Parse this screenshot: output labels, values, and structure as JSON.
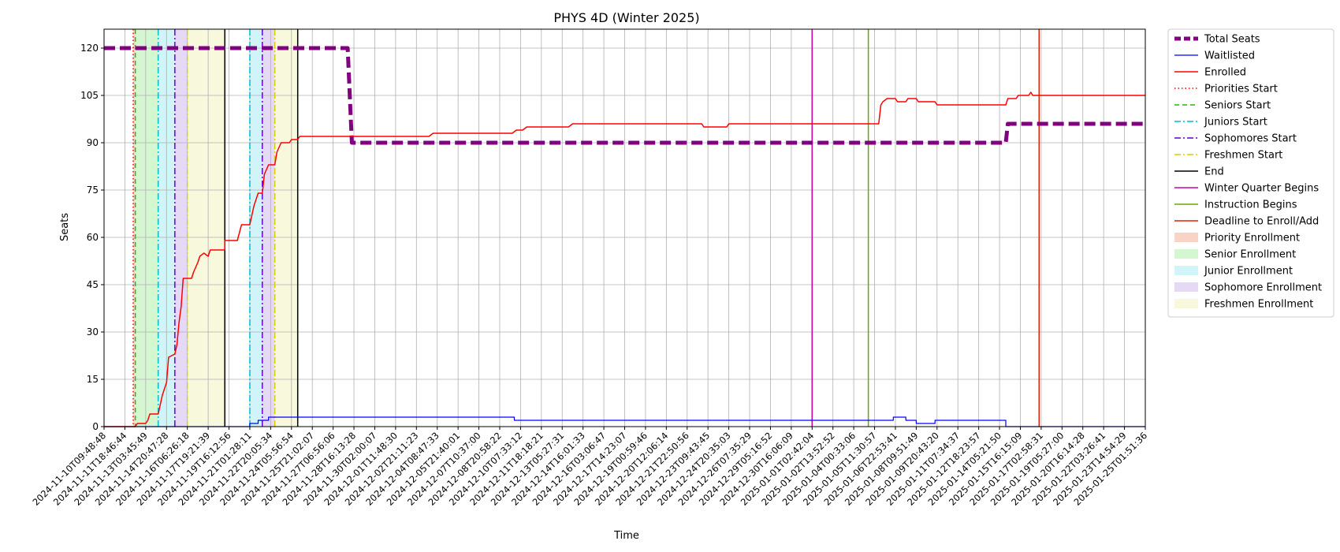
{
  "chart_data": {
    "type": "line",
    "title": "PHYS 4D (Winter 2025)",
    "xlabel": "Time",
    "ylabel": "Seats",
    "ylim": [
      0,
      126
    ],
    "yticks": [
      0,
      15,
      30,
      45,
      60,
      75,
      90,
      105,
      120
    ],
    "grid": true,
    "legend_position": "outside-right",
    "x_tick_labels": [
      "2024-11-10T09:48:48",
      "2024-11-11T18:46:44",
      "2024-11-13T03:45:49",
      "2024-11-14T20:47:28",
      "2024-11-16T06:26:18",
      "2024-11-17T19:21:39",
      "2024-11-19T16:12:56",
      "2024-11-21T01:28:11",
      "2024-11-22T20:05:34",
      "2024-11-24T05:56:54",
      "2024-11-25T21:02:07",
      "2024-11-27T06:56:06",
      "2024-11-28T16:13:28",
      "2024-11-30T02:00:07",
      "2024-12-01T11:48:30",
      "2024-12-02T21:11:23",
      "2024-12-04T08:47:33",
      "2024-12-05T21:40:01",
      "2024-12-07T10:37:00",
      "2024-12-08T20:58:22",
      "2024-12-10T07:33:12",
      "2024-12-11T18:18:21",
      "2024-12-13T05:27:31",
      "2024-12-14T16:01:33",
      "2024-12-16T03:06:47",
      "2024-12-17T14:23:07",
      "2024-12-19T00:59:46",
      "2024-12-20T12:06:14",
      "2024-12-21T22:50:56",
      "2024-12-23T09:43:45",
      "2024-12-24T20:35:03",
      "2024-12-26T07:35:29",
      "2024-12-29T05:16:52",
      "2024-12-30T16:06:09",
      "2025-01-01T02:42:04",
      "2025-01-02T13:52:52",
      "2025-01-04T00:33:06",
      "2025-01-05T11:30:57",
      "2025-01-06T22:53:41",
      "2025-01-08T09:51:49",
      "2025-01-09T20:43:20",
      "2025-01-11T07:34:37",
      "2025-01-12T18:23:57",
      "2025-01-14T05:21:50",
      "2025-01-15T16:15:09",
      "2025-01-17T02:58:31",
      "2025-01-19T05:27:00",
      "2025-01-20T16:14:28",
      "2025-01-22T03:26:41",
      "2025-01-23T14:54:29",
      "2025-01-25T01:51:36"
    ],
    "x_range_ticks": [
      0,
      50
    ],
    "series": [
      {
        "name": "Total Seats",
        "color": "#800080",
        "style": "dashed-thick",
        "points": [
          [
            0,
            120
          ],
          [
            11.7,
            120
          ],
          [
            11.9,
            90
          ],
          [
            43.3,
            90
          ],
          [
            43.4,
            96
          ],
          [
            50,
            96
          ]
        ]
      },
      {
        "name": "Waitlisted",
        "color": "#0000ff",
        "style": "solid-thin",
        "points": [
          [
            0,
            0
          ],
          [
            5.9,
            0
          ],
          [
            5.9,
            0
          ],
          [
            6.4,
            0
          ],
          [
            7.0,
            0
          ],
          [
            7.0,
            1
          ],
          [
            7.4,
            1
          ],
          [
            7.4,
            2
          ],
          [
            7.9,
            2
          ],
          [
            7.9,
            3
          ],
          [
            19.7,
            3
          ],
          [
            19.7,
            2
          ],
          [
            37.9,
            2
          ],
          [
            37.9,
            3
          ],
          [
            38.5,
            3
          ],
          [
            38.5,
            2
          ],
          [
            39.0,
            2
          ],
          [
            39.0,
            1
          ],
          [
            39.9,
            1
          ],
          [
            39.9,
            2
          ],
          [
            43.3,
            2
          ],
          [
            43.3,
            0
          ],
          [
            50,
            0
          ]
        ]
      },
      {
        "name": "Enrolled",
        "color": "#ff0000",
        "style": "solid",
        "points": [
          [
            0,
            0
          ],
          [
            1.5,
            0
          ],
          [
            1.6,
            1
          ],
          [
            2.0,
            1
          ],
          [
            2.1,
            2
          ],
          [
            2.2,
            4
          ],
          [
            2.6,
            4
          ],
          [
            2.8,
            10
          ],
          [
            3.0,
            14
          ],
          [
            3.1,
            22
          ],
          [
            3.4,
            23
          ],
          [
            3.5,
            26
          ],
          [
            3.6,
            33
          ],
          [
            3.7,
            38
          ],
          [
            3.8,
            47
          ],
          [
            4.2,
            47
          ],
          [
            4.3,
            49
          ],
          [
            4.5,
            52
          ],
          [
            4.6,
            54
          ],
          [
            4.8,
            55
          ],
          [
            5.0,
            54
          ],
          [
            5.1,
            56
          ],
          [
            5.8,
            56
          ],
          [
            5.8,
            59
          ],
          [
            6.4,
            59
          ],
          [
            6.6,
            64
          ],
          [
            7.0,
            64
          ],
          [
            7.2,
            70
          ],
          [
            7.4,
            74
          ],
          [
            7.6,
            74
          ],
          [
            7.7,
            80
          ],
          [
            7.9,
            83
          ],
          [
            8.2,
            83
          ],
          [
            8.3,
            87
          ],
          [
            8.5,
            90
          ],
          [
            8.9,
            90
          ],
          [
            9.0,
            91
          ],
          [
            9.3,
            91
          ],
          [
            9.4,
            92
          ],
          [
            15.6,
            92
          ],
          [
            15.8,
            93
          ],
          [
            19.6,
            93
          ],
          [
            19.8,
            94
          ],
          [
            20.1,
            94
          ],
          [
            20.3,
            95
          ],
          [
            22.3,
            95
          ],
          [
            22.5,
            96
          ],
          [
            28.7,
            96
          ],
          [
            28.8,
            95
          ],
          [
            29.9,
            95
          ],
          [
            30.0,
            96
          ],
          [
            37.2,
            96
          ],
          [
            37.3,
            102
          ],
          [
            37.4,
            103
          ],
          [
            37.6,
            104
          ],
          [
            38.0,
            104
          ],
          [
            38.1,
            103
          ],
          [
            38.5,
            103
          ],
          [
            38.6,
            104
          ],
          [
            39.0,
            104
          ],
          [
            39.1,
            103
          ],
          [
            39.9,
            103
          ],
          [
            40.0,
            102
          ],
          [
            43.3,
            102
          ],
          [
            43.4,
            104
          ],
          [
            43.8,
            104
          ],
          [
            43.9,
            105
          ],
          [
            44.4,
            105
          ],
          [
            44.5,
            106
          ],
          [
            44.6,
            105
          ],
          [
            50,
            105
          ]
        ]
      }
    ],
    "vlines": [
      {
        "name": "Priorities Start",
        "x": 1.4,
        "color": "#ff0000",
        "style": "dotted"
      },
      {
        "name": "Seniors Start",
        "x": 1.5,
        "color": "#22bb00",
        "style": "dashed"
      },
      {
        "name": "Juniors Start",
        "x": 2.6,
        "color": "#00bbcc",
        "style": "dashdot"
      },
      {
        "name": "Sophomores Start",
        "x": 3.4,
        "color": "#6600cc",
        "style": "dashdot"
      },
      {
        "name": "Freshmen Start",
        "x": 4.0,
        "color": "#ddcc00",
        "style": "dashdot"
      },
      {
        "name": "End",
        "x": 5.8,
        "color": "#000000",
        "style": "solid"
      },
      {
        "name": "Juniors Start",
        "x": 7.0,
        "color": "#00bbcc",
        "style": "dashdot"
      },
      {
        "name": "Sophomores Start",
        "x": 7.6,
        "color": "#6600cc",
        "style": "dashdot"
      },
      {
        "name": "Freshmen Start",
        "x": 8.2,
        "color": "#ddcc00",
        "style": "dashdot"
      },
      {
        "name": "End",
        "x": 9.3,
        "color": "#000000",
        "style": "solid"
      },
      {
        "name": "Winter Quarter Begins",
        "x": 34.0,
        "color": "#cc00aa",
        "style": "solid"
      },
      {
        "name": "Instruction Begins",
        "x": 36.7,
        "color": "#66aa00",
        "style": "solid"
      },
      {
        "name": "Deadline to Enroll/Add",
        "x": 44.9,
        "color": "#dd2200",
        "style": "solid"
      }
    ],
    "spans": [
      {
        "name": "Priority Enrollment",
        "x0": 1.4,
        "x1": 1.5,
        "color": "#f4b8a0"
      },
      {
        "name": "Senior Enrollment",
        "x0": 1.5,
        "x1": 2.6,
        "color": "#b8f0b0"
      },
      {
        "name": "Junior Enrollment",
        "x0": 2.6,
        "x1": 3.4,
        "color": "#b0ecf2"
      },
      {
        "name": "Sophomore Enrollment",
        "x0": 3.4,
        "x1": 4.0,
        "color": "#d4c0f0"
      },
      {
        "name": "Freshmen Enrollment",
        "x0": 4.0,
        "x1": 5.8,
        "color": "#f4f4c4"
      },
      {
        "name": "Junior Enrollment",
        "x0": 7.0,
        "x1": 7.6,
        "color": "#b0ecf2"
      },
      {
        "name": "Sophomore Enrollment",
        "x0": 7.6,
        "x1": 8.2,
        "color": "#d4c0f0"
      },
      {
        "name": "Freshmen Enrollment",
        "x0": 8.2,
        "x1": 9.3,
        "color": "#f4f4c4"
      }
    ],
    "legend": [
      {
        "label": "Total Seats",
        "kind": "line",
        "color": "#800080",
        "style": "dashed-thick"
      },
      {
        "label": "Waitlisted",
        "kind": "line",
        "color": "#0000ff",
        "style": "solid-thin"
      },
      {
        "label": "Enrolled",
        "kind": "line",
        "color": "#ff0000",
        "style": "solid"
      },
      {
        "label": "Priorities Start",
        "kind": "line",
        "color": "#ff0000",
        "style": "dotted"
      },
      {
        "label": "Seniors Start",
        "kind": "line",
        "color": "#22bb00",
        "style": "dashed"
      },
      {
        "label": "Juniors Start",
        "kind": "line",
        "color": "#00bbcc",
        "style": "dashdot"
      },
      {
        "label": "Sophomores Start",
        "kind": "line",
        "color": "#6600cc",
        "style": "dashdot"
      },
      {
        "label": "Freshmen Start",
        "kind": "line",
        "color": "#ddcc00",
        "style": "dashdot"
      },
      {
        "label": "End",
        "kind": "line",
        "color": "#000000",
        "style": "solid"
      },
      {
        "label": "Winter Quarter Begins",
        "kind": "line",
        "color": "#cc00aa",
        "style": "solid"
      },
      {
        "label": "Instruction Begins",
        "kind": "line",
        "color": "#66aa00",
        "style": "solid"
      },
      {
        "label": "Deadline to Enroll/Add",
        "kind": "line",
        "color": "#dd2200",
        "style": "solid"
      },
      {
        "label": "Priority Enrollment",
        "kind": "patch",
        "color": "#f4b8a0"
      },
      {
        "label": "Senior Enrollment",
        "kind": "patch",
        "color": "#b8f0b0"
      },
      {
        "label": "Junior Enrollment",
        "kind": "patch",
        "color": "#b0ecf2"
      },
      {
        "label": "Sophomore Enrollment",
        "kind": "patch",
        "color": "#d4c0f0"
      },
      {
        "label": "Freshmen Enrollment",
        "kind": "patch",
        "color": "#f4f4c4"
      }
    ]
  }
}
